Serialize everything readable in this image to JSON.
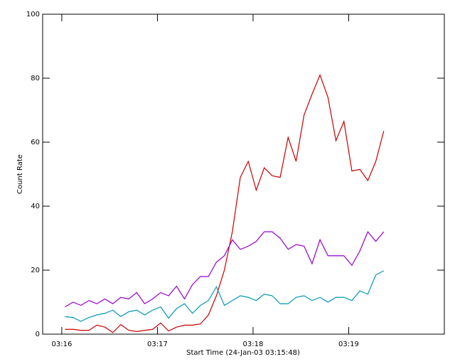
{
  "chart_data": {
    "type": "line",
    "xlabel": "Start Time (24-Jan-03 03:15:48)",
    "ylabel": "Count Rate",
    "x": [
      14,
      19,
      24,
      29,
      34,
      39,
      44,
      49,
      54,
      59,
      64,
      69,
      74,
      79,
      84,
      89,
      94,
      99,
      104,
      109,
      114,
      119,
      124,
      129,
      134,
      139,
      144,
      149,
      154,
      159,
      164,
      169,
      174,
      179,
      184,
      189,
      194,
      199,
      204,
      209,
      214
    ],
    "xlim": [
      0,
      252
    ],
    "xticks": [
      {
        "value": 12,
        "label": "03:16"
      },
      {
        "value": 72,
        "label": "03:17"
      },
      {
        "value": 132,
        "label": "03:18"
      },
      {
        "value": 192,
        "label": "03:19"
      }
    ],
    "ylim": [
      0,
      100
    ],
    "yticks": [
      0,
      20,
      40,
      60,
      80,
      100
    ],
    "series": [
      {
        "color": "#c80000",
        "values": [
          1.5,
          1.5,
          1.2,
          1.2,
          2.8,
          2.2,
          0.5,
          3,
          1.2,
          0.8,
          1.2,
          1.5,
          3.5,
          1,
          2.2,
          2.8,
          2.8,
          3.2,
          6,
          12,
          20,
          32,
          49,
          54,
          45,
          52,
          49.5,
          49,
          61.5,
          54,
          68.5,
          75,
          81,
          74,
          60.5,
          66.5,
          51,
          51.5,
          48,
          54,
          63.5
        ]
      },
      {
        "color": "#9400c8",
        "values": [
          8.5,
          10,
          9,
          10.5,
          9.5,
          11,
          9.5,
          11.5,
          11,
          13,
          9.5,
          11,
          13,
          12,
          15,
          11,
          15.5,
          18,
          18,
          22.5,
          24.5,
          29.5,
          26.5,
          27.5,
          29,
          32,
          32,
          30,
          26.5,
          28,
          27.5,
          22,
          29.5,
          24.5,
          24.5,
          24.5,
          21.5,
          26,
          32,
          29,
          32
        ]
      },
      {
        "color": "#0096b4",
        "values": [
          5.5,
          5.2,
          4,
          5.2,
          6,
          6.5,
          7.5,
          5.5,
          7,
          7.5,
          6,
          7.5,
          8.5,
          5,
          8,
          9.5,
          6.5,
          9,
          10.5,
          14.8,
          9,
          10.5,
          12,
          11.5,
          10.5,
          12.5,
          12,
          9.5,
          9.5,
          11.5,
          12,
          10.5,
          11.5,
          10,
          11.5,
          11.5,
          10.5,
          13.5,
          12.5,
          18.5,
          19.8
        ]
      }
    ]
  }
}
